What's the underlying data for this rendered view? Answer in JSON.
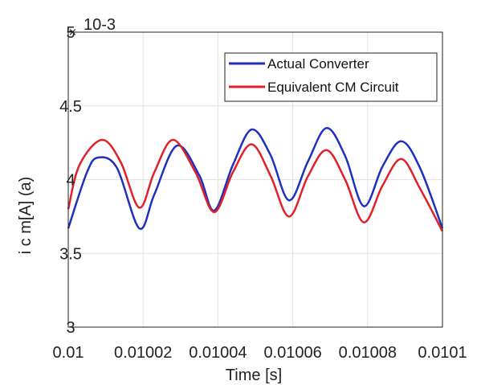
{
  "chart_data": {
    "type": "line",
    "xlabel": "Time [s]",
    "ylabel": "i  c m[A] (a)",
    "exponent_label": "10-3",
    "xlim": [
      0.01,
      0.0101
    ],
    "ylim": [
      3,
      5
    ],
    "xticks": [
      "0.01",
      "0.01002",
      "0.01004",
      "0.01006",
      "0.01008",
      "0.0101"
    ],
    "yticks": [
      "3",
      "3.5",
      "4",
      "4.5",
      "5"
    ],
    "grid": true,
    "legend_position": "top-right",
    "series": [
      {
        "name": "Actual Converter",
        "color": "#1f2fbf",
        "x": [
          0.01,
          0.010005,
          0.010008,
          0.010013,
          0.010019,
          0.010023,
          0.010029,
          0.010035,
          0.010039,
          0.010044,
          0.010049,
          0.010054,
          0.010059,
          0.010064,
          0.010069,
          0.010074,
          0.010079,
          0.010084,
          0.010089,
          0.010094,
          0.0101
        ],
        "values": [
          3.67,
          4.05,
          4.15,
          4.08,
          3.67,
          3.9,
          4.23,
          4.03,
          3.79,
          4.1,
          4.34,
          4.17,
          3.86,
          4.12,
          4.35,
          4.16,
          3.82,
          4.09,
          4.26,
          4.08,
          3.67
        ]
      },
      {
        "name": "Equivalent CM Circuit",
        "color": "#e0202a",
        "x": [
          0.01,
          0.010003,
          0.010009,
          0.010014,
          0.010019,
          0.010023,
          0.010028,
          0.010034,
          0.010039,
          0.010044,
          0.010049,
          0.010054,
          0.010059,
          0.010064,
          0.010069,
          0.010074,
          0.010079,
          0.010084,
          0.010089,
          0.010094,
          0.0101
        ],
        "values": [
          3.8,
          4.1,
          4.27,
          4.12,
          3.81,
          4.05,
          4.27,
          4.05,
          3.78,
          4.05,
          4.24,
          4.03,
          3.75,
          4.02,
          4.2,
          4.0,
          3.71,
          3.96,
          4.14,
          3.94,
          3.65
        ]
      }
    ]
  }
}
